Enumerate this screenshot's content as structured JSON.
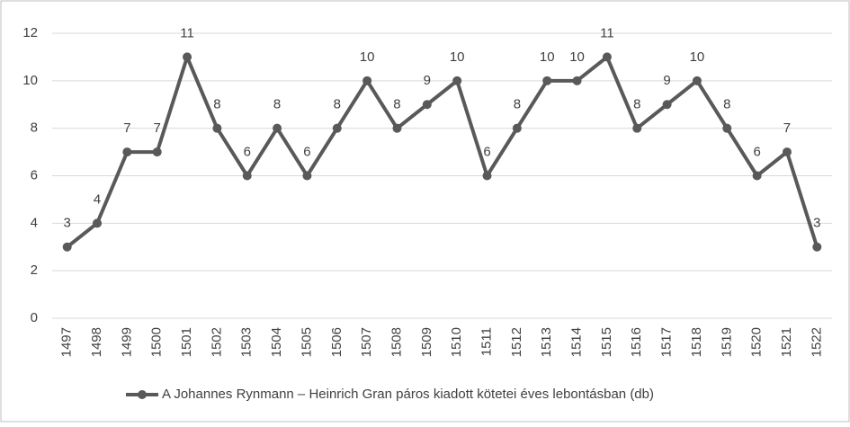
{
  "chart_data": {
    "type": "line",
    "categories": [
      "1497",
      "1498",
      "1499",
      "1500",
      "1501",
      "1502",
      "1503",
      "1504",
      "1505",
      "1506",
      "1507",
      "1508",
      "1509",
      "1510",
      "1511",
      "1512",
      "1513",
      "1514",
      "1515",
      "1516",
      "1517",
      "1518",
      "1519",
      "1520",
      "1521",
      "1522"
    ],
    "series": [
      {
        "name": "A Johannes Rynmann – Heinrich Gran páros kiadott kötetei éves lebontásban (db)",
        "color": "#595959",
        "values": [
          3,
          4,
          7,
          7,
          11,
          8,
          6,
          8,
          6,
          8,
          10,
          8,
          9,
          10,
          6,
          8,
          10,
          10,
          11,
          8,
          9,
          10,
          8,
          6,
          7,
          3
        ]
      }
    ],
    "ylim": [
      0,
      12
    ],
    "yticks": [
      0,
      2,
      4,
      6,
      8,
      10,
      12
    ],
    "grid": true,
    "legend": "bottom"
  }
}
